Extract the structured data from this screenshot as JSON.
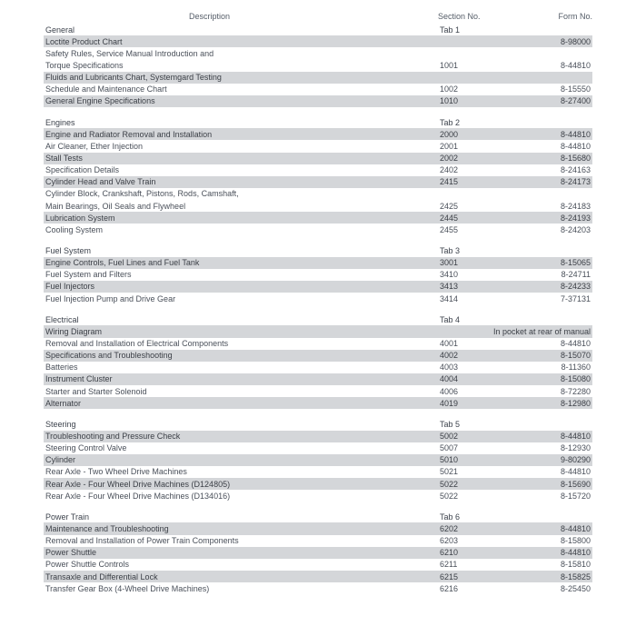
{
  "headers": {
    "desc": "Description",
    "section": "Section No.",
    "form": "Form No."
  },
  "sections": [
    {
      "title": "General",
      "tab": "Tab 1",
      "rows": [
        {
          "d": "Loctite Product Chart",
          "s": "",
          "f": "8-98000",
          "sh": true
        },
        {
          "d": "Safety Rules, Service Manual Introduction and",
          "s": "",
          "f": ""
        },
        {
          "d": "Torque Specifications",
          "s": "1001",
          "f": "8-44810"
        },
        {
          "d": "Fluids and Lubricants Chart, Systemgard Testing",
          "s": "",
          "f": "",
          "sh": true
        },
        {
          "d": "Schedule and Maintenance Chart",
          "s": "1002",
          "f": "8-15550"
        },
        {
          "d": "General Engine Specifications",
          "s": "1010",
          "f": "8-27400",
          "sh": true
        }
      ]
    },
    {
      "title": "Engines",
      "tab": "Tab 2",
      "rows": [
        {
          "d": "Engine and Radiator Removal and Installation",
          "s": "2000",
          "f": "8-44810",
          "sh": true
        },
        {
          "d": "Air Cleaner, Ether Injection",
          "s": "2001",
          "f": "8-44810"
        },
        {
          "d": "Stall Tests",
          "s": "2002",
          "f": "8-15680",
          "sh": true
        },
        {
          "d": "Specification Details",
          "s": "2402",
          "f": "8-24163"
        },
        {
          "d": "Cylinder Head and Valve Train",
          "s": "2415",
          "f": "8-24173",
          "sh": true
        },
        {
          "d": "Cylinder Block, Crankshaft, Pistons, Rods, Camshaft,",
          "s": "",
          "f": ""
        },
        {
          "d": "Main Bearings, Oil Seals and Flywheel",
          "s": "2425",
          "f": "8-24183"
        },
        {
          "d": "Lubrication System",
          "s": "2445",
          "f": "8-24193",
          "sh": true
        },
        {
          "d": "Cooling System",
          "s": "2455",
          "f": "8-24203"
        }
      ]
    },
    {
      "title": "Fuel System",
      "tab": "Tab 3",
      "rows": [
        {
          "d": "Engine Controls, Fuel Lines and Fuel Tank",
          "s": "3001",
          "f": "8-15065",
          "sh": true
        },
        {
          "d": "Fuel System and Filters",
          "s": "3410",
          "f": "8-24711"
        },
        {
          "d": "Fuel Injectors",
          "s": "3413",
          "f": "8-24233",
          "sh": true
        },
        {
          "d": "Fuel Injection Pump and Drive Gear",
          "s": "3414",
          "f": "7-37131"
        }
      ]
    },
    {
      "title": "Electrical",
      "tab": "Tab 4",
      "rows": [
        {
          "d": "Wiring Diagram",
          "s": "",
          "f": "In pocket at rear of manual",
          "sh": true,
          "wide": true
        },
        {
          "d": "Removal and Installation of Electrical Components",
          "s": "4001",
          "f": "8-44810"
        },
        {
          "d": "Specifications and Troubleshooting",
          "s": "4002",
          "f": "8-15070",
          "sh": true
        },
        {
          "d": "Batteries",
          "s": "4003",
          "f": "8-11360"
        },
        {
          "d": "Instrument Cluster",
          "s": "4004",
          "f": "8-15080",
          "sh": true
        },
        {
          "d": "Starter and Starter Solenoid",
          "s": "4006",
          "f": "8-72280"
        },
        {
          "d": "Alternator",
          "s": "4019",
          "f": "8-12980",
          "sh": true
        }
      ]
    },
    {
      "title": "Steering",
      "tab": "Tab 5",
      "rows": [
        {
          "d": "Troubleshooting and Pressure Check",
          "s": "5002",
          "f": "8-44810",
          "sh": true
        },
        {
          "d": "Steering Control Valve",
          "s": "5007",
          "f": "8-12930"
        },
        {
          "d": "Cylinder",
          "s": "5010",
          "f": "9-80290",
          "sh": true
        },
        {
          "d": "Rear Axle - Two Wheel Drive Machines",
          "s": "5021",
          "f": "8-44810"
        },
        {
          "d": "Rear Axle - Four Wheel Drive Machines (D124805)",
          "s": "5022",
          "f": "8-15690",
          "sh": true
        },
        {
          "d": "Rear Axle - Four Wheel Drive Machines (D134016)",
          "s": "5022",
          "f": "8-15720"
        }
      ]
    },
    {
      "title": "Power Train",
      "tab": "Tab 6",
      "rows": [
        {
          "d": "Maintenance and Troubleshooting",
          "s": "6202",
          "f": "8-44810",
          "sh": true
        },
        {
          "d": "Removal and Installation of Power Train Components",
          "s": "6203",
          "f": "8-15800"
        },
        {
          "d": "Power Shuttle",
          "s": "6210",
          "f": "8-44810",
          "sh": true
        },
        {
          "d": "Power Shuttle Controls",
          "s": "6211",
          "f": "8-15810"
        },
        {
          "d": "Transaxle and Differential Lock",
          "s": "6215",
          "f": "8-15825",
          "sh": true
        },
        {
          "d": "Transfer Gear Box (4-Wheel Drive Machines)",
          "s": "6216",
          "f": "8-25450"
        }
      ]
    }
  ]
}
